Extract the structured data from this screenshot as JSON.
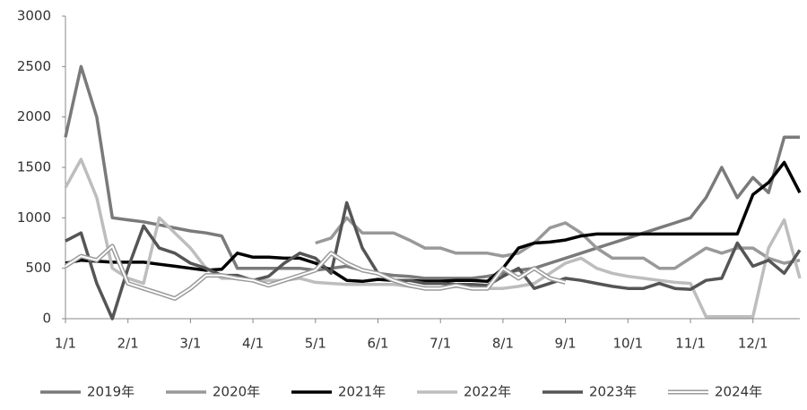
{
  "chart_data": {
    "type": "line",
    "categories": [
      "1/1",
      null,
      null,
      null,
      "2/1",
      null,
      null,
      null,
      "3/1",
      null,
      null,
      null,
      "4/1",
      null,
      null,
      null,
      "5/1",
      null,
      null,
      null,
      "6/1",
      null,
      null,
      null,
      "7/1",
      null,
      null,
      null,
      "8/1",
      null,
      null,
      null,
      "9/1",
      null,
      null,
      null,
      "10/1",
      null,
      null,
      null,
      "11/1",
      null,
      null,
      null,
      "12/1",
      null,
      null,
      null
    ],
    "ylim": [
      0,
      3000
    ],
    "yticks": [
      0,
      500,
      1000,
      1500,
      2000,
      2500,
      3000
    ],
    "series": [
      {
        "name": "2019年",
        "color": "#7a7a7a",
        "values": [
          1800,
          2500,
          2000,
          1000,
          980,
          960,
          930,
          900,
          870,
          850,
          820,
          500,
          500,
          500,
          500,
          500,
          480,
          500,
          520,
          480,
          450,
          430,
          420,
          400,
          400,
          400,
          400,
          420,
          450,
          480,
          500,
          550,
          600,
          650,
          700,
          750,
          800,
          850,
          900,
          950,
          1000,
          1200,
          1500,
          1200,
          1400,
          1250,
          1800,
          1800
        ]
      },
      {
        "name": "2020年",
        "color": "#999999",
        "values": [
          null,
          null,
          null,
          null,
          null,
          null,
          null,
          null,
          null,
          null,
          null,
          null,
          null,
          null,
          null,
          null,
          750,
          800,
          1000,
          850,
          850,
          850,
          780,
          700,
          700,
          650,
          650,
          650,
          620,
          650,
          750,
          900,
          950,
          850,
          700,
          600,
          600,
          600,
          500,
          500,
          600,
          700,
          650,
          700,
          700,
          600,
          550,
          580
        ]
      },
      {
        "name": "2021年",
        "color": "#000000",
        "values": [
          550,
          580,
          570,
          560,
          560,
          560,
          540,
          520,
          500,
          480,
          490,
          650,
          610,
          610,
          600,
          600,
          550,
          480,
          380,
          370,
          390,
          380,
          380,
          370,
          370,
          380,
          380,
          370,
          500,
          700,
          750,
          760,
          780,
          820,
          840,
          840,
          840,
          840,
          840,
          840,
          840,
          840,
          840,
          840,
          1230,
          1350,
          1550,
          1250
        ]
      },
      {
        "name": "2022年",
        "color": "#bdbdbd",
        "values": [
          1300,
          1580,
          1200,
          500,
          400,
          350,
          1000,
          850,
          700,
          500,
          400,
          400,
          380,
          380,
          380,
          400,
          360,
          350,
          340,
          340,
          340,
          340,
          320,
          300,
          300,
          320,
          300,
          300,
          300,
          320,
          350,
          450,
          550,
          600,
          500,
          450,
          420,
          400,
          380,
          360,
          350,
          20,
          20,
          20,
          20,
          700,
          980,
          400
        ]
      },
      {
        "name": "2023年",
        "color": "#555555",
        "values": [
          770,
          850,
          350,
          0,
          500,
          920,
          700,
          650,
          550,
          500,
          430,
          430,
          380,
          420,
          550,
          650,
          600,
          450,
          1150,
          700,
          450,
          380,
          380,
          350,
          350,
          340,
          340,
          330,
          420,
          500,
          300,
          350,
          400,
          380,
          350,
          320,
          300,
          300,
          350,
          300,
          290,
          380,
          400,
          750,
          520,
          580,
          450,
          680
        ]
      },
      {
        "name": "2024年",
        "color": "#ffffff",
        "values": [
          520,
          620,
          580,
          720,
          350,
          300,
          250,
          200,
          300,
          430,
          430,
          400,
          380,
          330,
          380,
          430,
          480,
          650,
          550,
          480,
          450,
          380,
          330,
          300,
          300,
          330,
          300,
          300,
          500,
          400,
          500,
          400,
          360,
          null,
          null,
          null,
          null,
          null,
          null,
          null,
          null,
          null,
          null,
          null,
          null,
          null,
          null,
          null
        ]
      }
    ]
  }
}
